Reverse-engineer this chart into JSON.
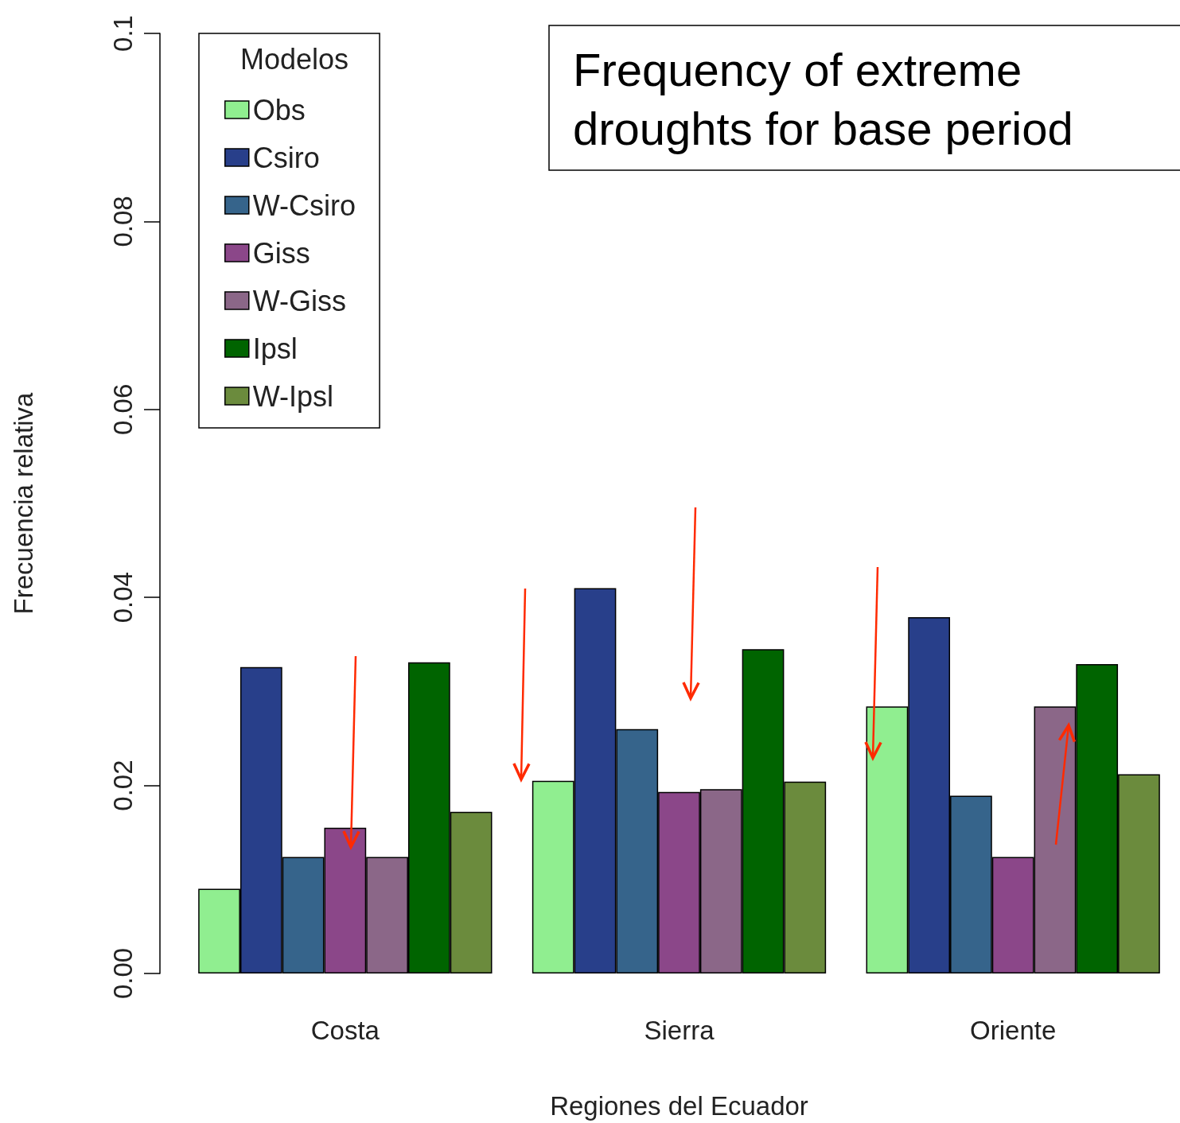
{
  "chart_data": {
    "type": "bar",
    "title": "Frequency of extreme droughts for base period",
    "xlabel": "Regiones del Ecuador",
    "ylabel": "Frecuencia relativa",
    "legend_title": "Modelos",
    "legend": "top left",
    "grid": false,
    "categories": [
      "Costa",
      "Sierra",
      "Oriente"
    ],
    "ylim": [
      0,
      0.1
    ],
    "yticks": [
      {
        "value": 0,
        "label": "0.00"
      },
      {
        "value": 0.02,
        "label": "0.02"
      },
      {
        "value": 0.04,
        "label": "0.04"
      },
      {
        "value": 0.06,
        "label": "0.06"
      },
      {
        "value": 0.08,
        "label": "0.08"
      },
      {
        "value": 0.1,
        "label": "0.1"
      }
    ],
    "series": [
      {
        "name": "Obs",
        "color": "#90ee90",
        "values": [
          0.009,
          0.0205,
          0.0284
        ]
      },
      {
        "name": "Csiro",
        "color": "#283f8a",
        "values": [
          0.0326,
          0.041,
          0.0379
        ]
      },
      {
        "name": "W-Csiro",
        "color": "#36648b",
        "values": [
          0.0124,
          0.026,
          0.0189
        ]
      },
      {
        "name": "Giss",
        "color": "#8b4789",
        "values": [
          0.0155,
          0.0193,
          0.0124
        ]
      },
      {
        "name": "W-Giss",
        "color": "#8b6788",
        "values": [
          0.0124,
          0.0196,
          0.0284
        ]
      },
      {
        "name": "Ipsl",
        "color": "#006400",
        "values": [
          0.0331,
          0.0345,
          0.0329
        ]
      },
      {
        "name": "W-Ipsl",
        "color": "#6b8b3d",
        "values": [
          0.0172,
          0.0204,
          0.0212
        ]
      }
    ]
  }
}
